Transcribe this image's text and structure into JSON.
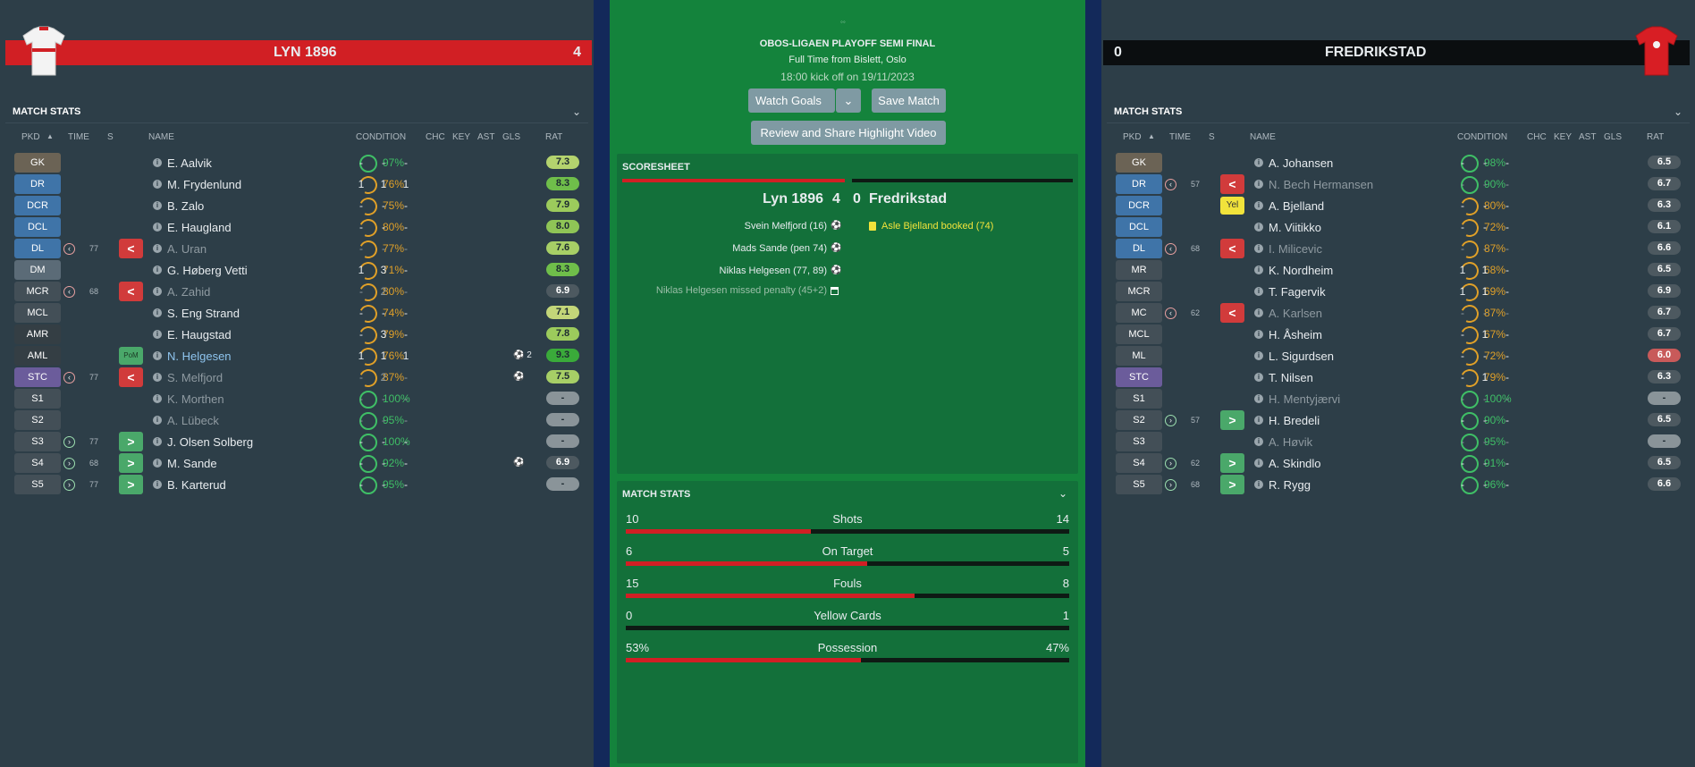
{
  "home": {
    "name": "LYN 1896",
    "score": "4",
    "panel_title": "MATCH STATS",
    "columns": [
      "PKD",
      "TIME",
      "S",
      "NAME",
      "CONDITION",
      "CHC",
      "KEY",
      "AST",
      "GLS",
      "RAT"
    ],
    "players": [
      {
        "pos": "GK",
        "pos_color": "#6b6355",
        "name": "E. Aalvik",
        "cond": "97%",
        "chc": "-",
        "key": "-",
        "ast": "-",
        "gls": "",
        "rat": "7.3",
        "rat_color": "#b4d36e"
      },
      {
        "pos": "DR",
        "pos_color": "#3f74a8",
        "name": "M. Frydenlund",
        "cond": "76%",
        "chc": "1",
        "key": "1",
        "ast": "1",
        "gls": "",
        "rat": "8.3",
        "rat_color": "#6fbe4a"
      },
      {
        "pos": "DCR",
        "pos_color": "#3f74a8",
        "name": "B. Zalo",
        "cond": "75%",
        "chc": "-",
        "key": "-",
        "ast": "-",
        "gls": "",
        "rat": "7.9",
        "rat_color": "#9ccb5c"
      },
      {
        "pos": "DCL",
        "pos_color": "#3f74a8",
        "name": "E. Haugland",
        "cond": "80%",
        "chc": "-",
        "key": "-",
        "ast": "-",
        "gls": "",
        "rat": "8.0",
        "rat_color": "#8fc556"
      },
      {
        "pos": "DL",
        "pos_color": "#3f74a8",
        "name": "A. Uran",
        "cond": "77%",
        "chc": "-",
        "key": "-",
        "ast": "-",
        "gls": "",
        "rat": "7.6",
        "rat_color": "#a7cf66",
        "sub": "out",
        "time": "77"
      },
      {
        "pos": "DM",
        "pos_color": "#5b6b77",
        "name": "G. Høberg Vetti",
        "cond": "71%",
        "chc": "1",
        "key": "3",
        "ast": "-",
        "gls": "",
        "rat": "8.3",
        "rat_color": "#6fbe4a"
      },
      {
        "pos": "MCR",
        "pos_color": "#434f57",
        "name": "A. Zahid",
        "cond": "80%",
        "chc": "-",
        "key": "2",
        "ast": "-",
        "gls": "",
        "rat": "6.9",
        "rat_color": "#4d5960",
        "sub": "out",
        "time": "68"
      },
      {
        "pos": "MCL",
        "pos_color": "#434f57",
        "name": "S. Eng Strand",
        "cond": "74%",
        "chc": "-",
        "key": "-",
        "ast": "-",
        "gls": "",
        "rat": "7.1",
        "rat_color": "#c3d679"
      },
      {
        "pos": "AMR",
        "pos_color": "#343e44",
        "name": "E. Haugstad",
        "cond": "79%",
        "chc": "-",
        "key": "3",
        "ast": "-",
        "gls": "",
        "rat": "7.8",
        "rat_color": "#9ccb5c"
      },
      {
        "pos": "AML",
        "pos_color": "#343e44",
        "name": "N. Helgesen",
        "cond": "76%",
        "chc": "1",
        "key": "1",
        "ast": "1",
        "gls": "2",
        "rat": "9.3",
        "rat_color": "#3aaa3a",
        "pom": "PoM"
      },
      {
        "pos": "STC",
        "pos_color": "#6b5c9b",
        "name": "S. Melfjord",
        "cond": "87%",
        "chc": "-",
        "key": "2",
        "ast": "-",
        "gls": "1",
        "rat": "7.5",
        "rat_color": "#a7cf66",
        "sub": "out",
        "time": "77"
      },
      {
        "pos": "S1",
        "pos_color": "#434f57",
        "name": "K. Morthen",
        "cond": "100%",
        "chc": "-",
        "key": "-",
        "ast": "-",
        "gls": "",
        "rat": "-",
        "rat_color": "#8a9499"
      },
      {
        "pos": "S2",
        "pos_color": "#434f57",
        "name": "A. Lübeck",
        "cond": "95%",
        "chc": "-",
        "key": "-",
        "ast": "-",
        "gls": "",
        "rat": "-",
        "rat_color": "#8a9499"
      },
      {
        "pos": "S3",
        "pos_color": "#434f57",
        "name": "J. Olsen Solberg",
        "cond": "100%",
        "chc": "-",
        "key": "-",
        "ast": "-",
        "gls": "",
        "rat": "-",
        "rat_color": "#8a9499",
        "sub": "in",
        "time": "77"
      },
      {
        "pos": "S4",
        "pos_color": "#434f57",
        "name": "M. Sande",
        "cond": "92%",
        "chc": "-",
        "key": "-",
        "ast": "-",
        "gls": "1",
        "rat": "6.9",
        "rat_color": "#4d5960",
        "sub": "in",
        "time": "68"
      },
      {
        "pos": "S5",
        "pos_color": "#434f57",
        "name": "B. Karterud",
        "cond": "95%",
        "chc": "-",
        "key": "-",
        "ast": "-",
        "gls": "",
        "rat": "-",
        "rat_color": "#8a9499",
        "sub": "in",
        "time": "77"
      }
    ]
  },
  "away": {
    "name": "FREDRIKSTAD",
    "score": "0",
    "panel_title": "MATCH STATS",
    "columns": [
      "PKD",
      "TIME",
      "S",
      "NAME",
      "CONDITION",
      "CHC",
      "KEY",
      "AST",
      "GLS",
      "RAT"
    ],
    "players": [
      {
        "pos": "GK",
        "pos_color": "#6b6355",
        "name": "A. Johansen",
        "cond": "98%",
        "chc": "-",
        "key": "-",
        "ast": "-",
        "rat": "6.5",
        "rat_color": "#4d5960"
      },
      {
        "pos": "DR",
        "pos_color": "#3f74a8",
        "name": "N. Bech Hermansen",
        "cond": "90%",
        "chc": "-",
        "key": "-",
        "ast": "-",
        "rat": "6.7",
        "rat_color": "#4d5960",
        "sub": "out",
        "time": "57"
      },
      {
        "pos": "DCR",
        "pos_color": "#3f74a8",
        "name": "A. Bjelland",
        "cond": "80%",
        "chc": "-",
        "key": "-",
        "ast": "-",
        "rat": "6.3",
        "rat_color": "#4d5960",
        "yellow": "Yel"
      },
      {
        "pos": "DCL",
        "pos_color": "#3f74a8",
        "name": "M. Viitikko",
        "cond": "72%",
        "chc": "-",
        "key": "-",
        "ast": "-",
        "rat": "6.1",
        "rat_color": "#4d5960"
      },
      {
        "pos": "DL",
        "pos_color": "#3f74a8",
        "name": "I. Milicevic",
        "cond": "87%",
        "chc": "-",
        "key": "-",
        "ast": "-",
        "rat": "6.6",
        "rat_color": "#4d5960",
        "sub": "out",
        "time": "68"
      },
      {
        "pos": "MR",
        "pos_color": "#434f57",
        "name": "K. Nordheim",
        "cond": "68%",
        "chc": "1",
        "key": "1",
        "ast": "-",
        "rat": "6.5",
        "rat_color": "#4d5960"
      },
      {
        "pos": "MCR",
        "pos_color": "#434f57",
        "name": "T. Fagervik",
        "cond": "69%",
        "chc": "1",
        "key": "1",
        "ast": "-",
        "rat": "6.9",
        "rat_color": "#4d5960"
      },
      {
        "pos": "MC",
        "pos_color": "#434f57",
        "name": "A. Karlsen",
        "cond": "87%",
        "chc": "-",
        "key": "-",
        "ast": "-",
        "rat": "6.7",
        "rat_color": "#4d5960",
        "sub": "out",
        "time": "62"
      },
      {
        "pos": "MCL",
        "pos_color": "#434f57",
        "name": "H. Åsheim",
        "cond": "67%",
        "chc": "-",
        "key": "1",
        "ast": "-",
        "rat": "6.7",
        "rat_color": "#4d5960"
      },
      {
        "pos": "ML",
        "pos_color": "#434f57",
        "name": "L. Sigurdsen",
        "cond": "72%",
        "chc": "-",
        "key": "-",
        "ast": "-",
        "rat": "6.0",
        "rat_color": "#c85a5a"
      },
      {
        "pos": "STC",
        "pos_color": "#6b5c9b",
        "name": "T. Nilsen",
        "cond": "79%",
        "chc": "-",
        "key": "1",
        "ast": "-",
        "rat": "6.3",
        "rat_color": "#4d5960"
      },
      {
        "pos": "S1",
        "pos_color": "#434f57",
        "name": "H. Mentyjærvi",
        "cond": "100%",
        "chc": "-",
        "key": "-",
        "ast": "-",
        "rat": "-",
        "rat_color": "#8a9499"
      },
      {
        "pos": "S2",
        "pos_color": "#434f57",
        "name": "H. Bredeli",
        "cond": "90%",
        "chc": "-",
        "key": "-",
        "ast": "-",
        "rat": "6.5",
        "rat_color": "#4d5960",
        "sub": "in",
        "time": "57"
      },
      {
        "pos": "S3",
        "pos_color": "#434f57",
        "name": "A. Høvik",
        "cond": "95%",
        "chc": "-",
        "key": "-",
        "ast": "-",
        "rat": "-",
        "rat_color": "#8a9499"
      },
      {
        "pos": "S4",
        "pos_color": "#434f57",
        "name": "A. Skindlo",
        "cond": "91%",
        "chc": "-",
        "key": "-",
        "ast": "-",
        "rat": "6.5",
        "rat_color": "#4d5960",
        "sub": "in",
        "time": "62"
      },
      {
        "pos": "S5",
        "pos_color": "#434f57",
        "name": "R. Rygg",
        "cond": "96%",
        "chc": "-",
        "key": "-",
        "ast": "-",
        "rat": "6.6",
        "rat_color": "#4d5960",
        "sub": "in",
        "time": "68"
      }
    ]
  },
  "match": {
    "competition": "OBOS-LIGAEN PLAYOFF SEMI FINAL",
    "status": "Full Time from Bislett, Oslo",
    "kickoff": "18:00 kick off on 19/11/2023",
    "watch_goals": "Watch Goals",
    "save_match": "Save Match",
    "review": "Review and Share Highlight Video",
    "scoresheet_title": "SCORESHEET",
    "home_name": "Lyn 1896",
    "home_score": "4",
    "away_score": "0",
    "away_name": "Fredrikstad",
    "home_events": [
      "Svein Melfjord (16)",
      "Mads Sande (pen 74)",
      "Niklas Helgesen (77, 89)"
    ],
    "missed_penalty": "Niklas Helgesen missed penalty (45+2)",
    "away_events": [
      "Asle Bjelland booked (74)"
    ],
    "stats_title": "MATCH STATS",
    "stats": [
      {
        "label": "Shots",
        "home": "10",
        "away": "14",
        "home_frac": 0.417
      },
      {
        "label": "On Target",
        "home": "6",
        "away": "5",
        "home_frac": 0.545
      },
      {
        "label": "Fouls",
        "home": "15",
        "away": "8",
        "home_frac": 0.652
      },
      {
        "label": "Yellow Cards",
        "home": "0",
        "away": "1",
        "home_frac": 0.0
      },
      {
        "label": "Possession",
        "home": "53%",
        "away": "47%",
        "home_frac": 0.53
      }
    ]
  },
  "colors": {
    "accent_red": "#d11f24",
    "pitch_green": "#14833c",
    "panel": "#2d3e48",
    "condition_green": "#3fbf66",
    "condition_amber": "#e0a028"
  }
}
